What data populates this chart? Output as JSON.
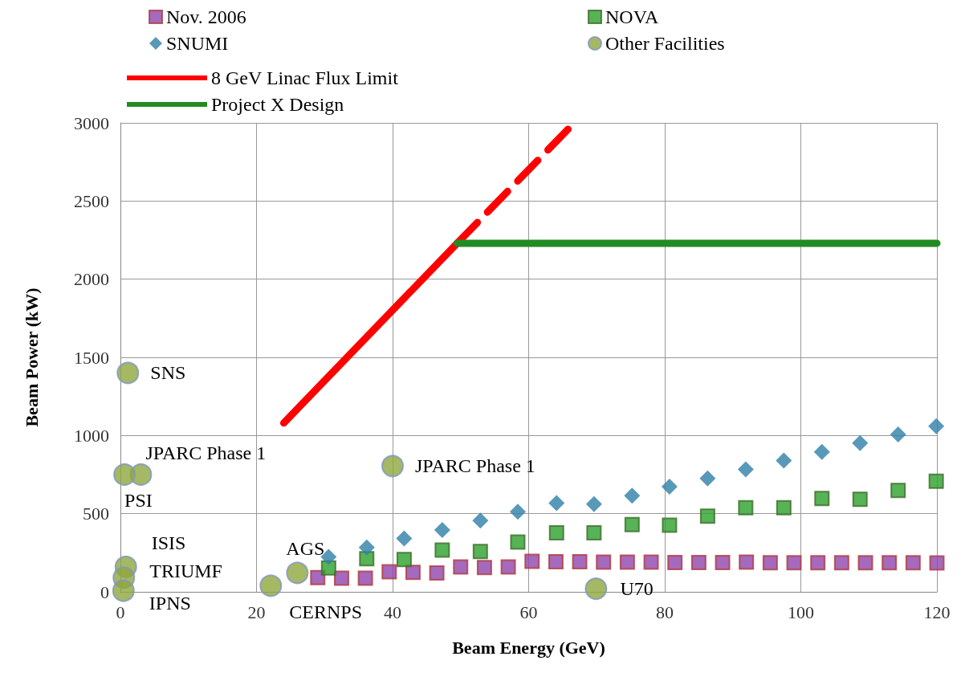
{
  "chart_data": {
    "type": "scatter",
    "xlabel": "Beam Energy (GeV)",
    "ylabel": "Beam Power (kW)",
    "xlim": [
      0,
      120
    ],
    "xticks": [
      0,
      20,
      40,
      60,
      80,
      100,
      120
    ],
    "ylim": [
      0,
      3000
    ],
    "yticks": [
      0,
      500,
      1000,
      1500,
      2000,
      2500,
      3000
    ],
    "grid": true,
    "legend": "top",
    "series": [
      {
        "name": "Nov. 2006",
        "marker": "square",
        "color": "#8e44ad",
        "x": [
          29,
          32.5,
          36,
          39.5,
          43,
          46.5,
          50,
          53.5,
          57,
          60.5,
          64,
          67.5,
          71,
          74.5,
          78,
          81.5,
          85,
          88.5,
          92,
          95.5,
          99,
          102.5,
          106,
          109.5,
          113,
          116.5,
          120
        ],
        "values": [
          91,
          87,
          87,
          128,
          125,
          121,
          159,
          156,
          159,
          195,
          193,
          193,
          190,
          190,
          190,
          188,
          188,
          188,
          190,
          186,
          186,
          186,
          186,
          186,
          186,
          186,
          185
        ]
      },
      {
        "name": "NOVA",
        "marker": "square",
        "color": "#2ca02c",
        "x": [
          30.6,
          36.2,
          41.7,
          47.3,
          52.9,
          58.4,
          64.1,
          69.6,
          75.2,
          80.7,
          86.3,
          91.9,
          97.5,
          103.1,
          108.7,
          114.3,
          119.9
        ],
        "values": [
          153,
          212,
          207,
          267,
          258,
          318,
          378,
          378,
          430,
          426,
          484,
          538,
          538,
          597,
          592,
          649,
          707
        ]
      },
      {
        "name": "SNUMI",
        "marker": "diamond",
        "color": "#2e7fa8",
        "x": [
          30.6,
          36.2,
          41.7,
          47.3,
          52.9,
          58.4,
          64.1,
          69.6,
          75.2,
          80.7,
          86.3,
          91.9,
          97.5,
          103.1,
          108.7,
          114.3,
          119.9
        ],
        "values": [
          224,
          284,
          341,
          396,
          456,
          512,
          567,
          561,
          615,
          673,
          726,
          784,
          840,
          895,
          952,
          1007,
          1060
        ]
      },
      {
        "name": "Other Facilities",
        "marker": "circle",
        "color": "#8fa63c",
        "x": [
          1.1,
          3,
          0.6,
          0.8,
          0.5,
          0.45,
          26,
          22.1,
          40,
          69.9
        ],
        "values": [
          1400,
          750,
          750,
          160,
          90,
          7,
          121,
          39,
          805,
          20
        ]
      },
      {
        "name": "8 GeV Linac Flux Limit",
        "type": "line",
        "marker": "none",
        "line_style": "solid",
        "color": "#ff0000",
        "x": [
          24,
          49.5
        ],
        "values": [
          1080,
          2230
        ]
      },
      {
        "type": "line",
        "marker": "none",
        "line_style": "dashed",
        "color": "#ff0000",
        "x": [
          49.5,
          66.7
        ],
        "values": [
          2230,
          3000
        ]
      },
      {
        "name": "Project X Design",
        "type": "line",
        "marker": "none",
        "line_style": "solid",
        "color": "#228b22",
        "x": [
          49.5,
          120
        ],
        "values": [
          2230,
          2230
        ]
      }
    ],
    "annotations": [
      {
        "text": "SNS",
        "x": 1.1,
        "y": 1400
      },
      {
        "text": "JPARC Phase 1",
        "x": 3,
        "y": 750
      },
      {
        "text": "PSI",
        "x": 0.6,
        "y": 750
      },
      {
        "text": "ISIS",
        "x": 0.8,
        "y": 160
      },
      {
        "text": "TRIUMF",
        "x": 0.5,
        "y": 90
      },
      {
        "text": "IPNS",
        "x": 0.45,
        "y": 7
      },
      {
        "text": "AGS",
        "x": 26,
        "y": 121
      },
      {
        "text": "CERNPS",
        "x": 22.1,
        "y": 39
      },
      {
        "text": "JPARC Phase 1",
        "x": 40,
        "y": 805
      },
      {
        "text": "U70",
        "x": 69.9,
        "y": 20
      }
    ]
  }
}
